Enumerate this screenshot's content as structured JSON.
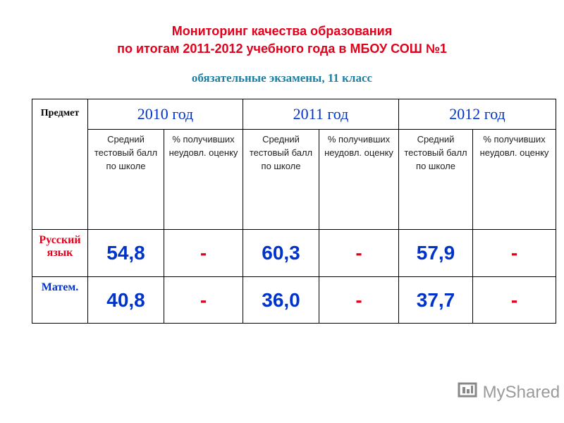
{
  "header": {
    "title_lines": [
      "Мониторинг качества образования",
      "по итогам 2011-2012 учебного года в МБОУ СОШ №1"
    ],
    "subtitle": "обязательные экзамены, 11 класс"
  },
  "table": {
    "corner": "Предмет",
    "years": [
      "2010 год",
      "2011 год",
      "2012 год"
    ],
    "subheaders": [
      "Средний тестовый балл по школе",
      "% получивших неудовл. оценку",
      "Средний тестовый балл по школе",
      "% получивших неудовл. оценку",
      "Средний тестовый балл по школе",
      "% получивших неудовл. оценку"
    ],
    "rows": [
      [
        "Русский язык",
        "54,8",
        "-",
        "60,3",
        "-",
        "57,9",
        "-"
      ],
      [
        "Матем.",
        "40,8",
        "-",
        "36,0",
        "-",
        "37,7",
        "-"
      ]
    ]
  },
  "watermark": "MyShared"
}
